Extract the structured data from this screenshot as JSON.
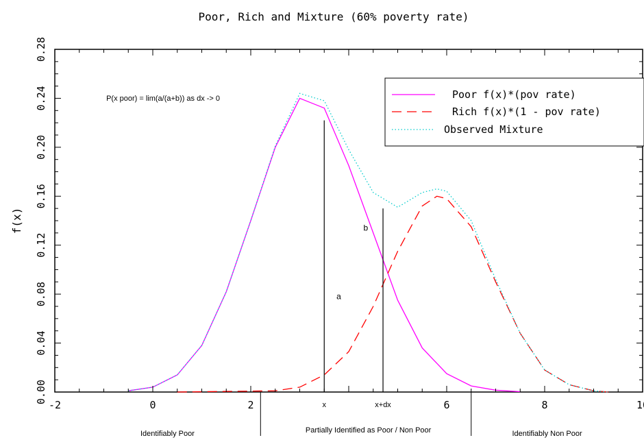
{
  "chart_data": {
    "type": "line",
    "title": "Poor, Rich and Mixture (60% poverty rate)",
    "xlabel": "",
    "ylabel": "f(x)",
    "xlim": [
      -2,
      10
    ],
    "ylim": [
      0,
      0.28
    ],
    "grid": false,
    "legend_position": "top-right",
    "x_ticks": [
      -2,
      0,
      2,
      4,
      6,
      8,
      10
    ],
    "x_tick_labels": [
      "-2",
      "0",
      "2",
      "",
      "6",
      "8",
      "10"
    ],
    "y_ticks": [
      0.0,
      0.04,
      0.08,
      0.12,
      0.16,
      0.2,
      0.24,
      0.28
    ],
    "y_tick_labels": [
      "0.00",
      "0.04",
      "0.08",
      "0.12",
      "0.16",
      "0.20",
      "0.24",
      "0.28"
    ],
    "series": [
      {
        "name": "Poor f(x)*(pov rate)",
        "color": "#ff00ff",
        "style": "solid",
        "points": [
          [
            -0.5,
            0.001
          ],
          [
            0,
            0.004
          ],
          [
            0.5,
            0.014
          ],
          [
            1,
            0.038
          ],
          [
            1.5,
            0.082
          ],
          [
            2,
            0.14
          ],
          [
            2.5,
            0.2
          ],
          [
            3,
            0.24
          ],
          [
            3.5,
            0.232
          ],
          [
            4,
            0.185
          ],
          [
            4.5,
            0.13
          ],
          [
            5,
            0.075
          ],
          [
            5.5,
            0.036
          ],
          [
            6,
            0.015
          ],
          [
            6.5,
            0.005
          ],
          [
            7,
            0.0015
          ],
          [
            7.5,
            0.0003
          ]
        ]
      },
      {
        "name": "Rich f(x)*(1 - pov rate)",
        "color": "#ff0000",
        "style": "dashed",
        "points": [
          [
            0.5,
            0
          ],
          [
            2.5,
            0.001
          ],
          [
            3,
            0.004
          ],
          [
            3.5,
            0.014
          ],
          [
            4,
            0.033
          ],
          [
            4.5,
            0.07
          ],
          [
            5,
            0.115
          ],
          [
            5.5,
            0.152
          ],
          [
            5.8,
            0.16
          ],
          [
            6,
            0.158
          ],
          [
            6.5,
            0.135
          ],
          [
            7,
            0.09
          ],
          [
            7.5,
            0.048
          ],
          [
            8,
            0.018
          ],
          [
            8.5,
            0.006
          ],
          [
            9,
            0.001
          ],
          [
            9.3,
            0
          ]
        ]
      },
      {
        "name": "Observed Mixture",
        "color": "#00cccc",
        "style": "dotted",
        "points": [
          [
            -0.5,
            0.001
          ],
          [
            0,
            0.004
          ],
          [
            0.5,
            0.014
          ],
          [
            1,
            0.038
          ],
          [
            1.5,
            0.082
          ],
          [
            2,
            0.14
          ],
          [
            2.5,
            0.201
          ],
          [
            3,
            0.244
          ],
          [
            3.5,
            0.238
          ],
          [
            4,
            0.198
          ],
          [
            4.5,
            0.163
          ],
          [
            5,
            0.151
          ],
          [
            5.5,
            0.163
          ],
          [
            5.8,
            0.166
          ],
          [
            6,
            0.164
          ],
          [
            6.5,
            0.14
          ],
          [
            7,
            0.092
          ],
          [
            7.5,
            0.048
          ],
          [
            8,
            0.018
          ],
          [
            8.5,
            0.006
          ],
          [
            9,
            0.001
          ],
          [
            9.3,
            0
          ]
        ]
      }
    ],
    "vertical_lines": [
      {
        "x": 3.5,
        "y_top": 0.222,
        "label": "x"
      },
      {
        "x": 4.7,
        "y_top": 0.15,
        "label": "x+dx"
      }
    ],
    "annotations": [
      {
        "text": "P(x poor) = lim(a/(a+b)) as dx -> 0",
        "x": -0.95,
        "y": 0.238
      },
      {
        "text": "b",
        "x": 4.3,
        "y": 0.132
      },
      {
        "text": "a",
        "x": 3.75,
        "y": 0.076
      }
    ],
    "regions": [
      {
        "label": "Identifiably Poor",
        "x_center": 0.3
      },
      {
        "label": "Partially Identified as Poor / Non Poor",
        "x_center": 4.4
      },
      {
        "label": "Identifiably Non Poor",
        "x_center": 8.05
      }
    ],
    "region_boundaries": [
      2.2,
      6.5
    ]
  }
}
